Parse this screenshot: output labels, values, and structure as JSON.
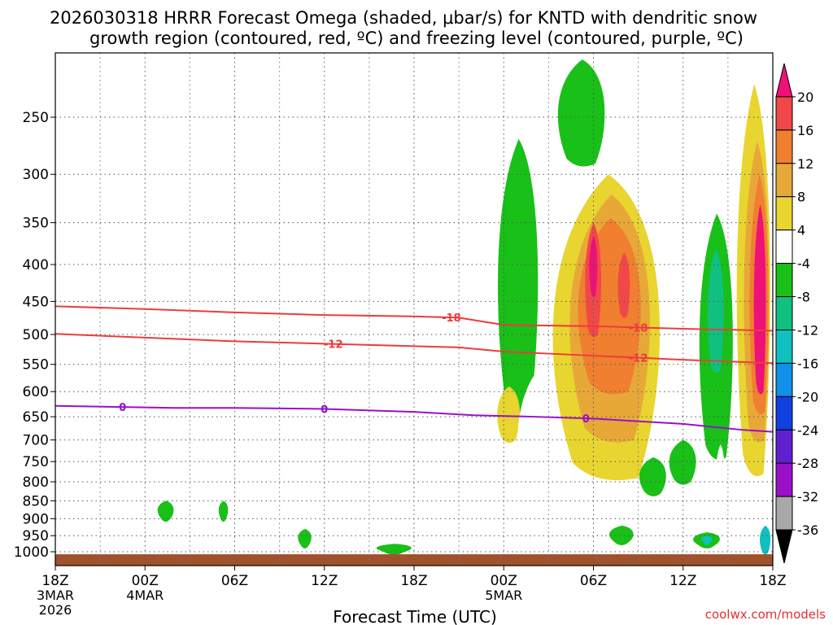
{
  "chart_data": {
    "type": "heatmap",
    "title_line1": "2026030318 HRRR Forecast Omega (shaded, μbar/s) for KNTD with dendritic snow",
    "title_line2": "growth region (contoured, red, ºC) and freezing level (contoured, purple, ºC)",
    "xlabel": "Forecast Time (UTC)",
    "credit": "coolwx.com/models",
    "x_unit": "hours since 2026-03-03 18Z",
    "xlim": [
      0,
      48
    ],
    "y_unit": "pressure (hPa)",
    "ylim": [
      1020,
      200
    ],
    "x_ticks": [
      {
        "hour": 0,
        "label": "18Z",
        "sub1": "3MAR",
        "sub2": "2026"
      },
      {
        "hour": 6,
        "label": "00Z",
        "sub1": "4MAR",
        "sub2": ""
      },
      {
        "hour": 12,
        "label": "06Z",
        "sub1": "",
        "sub2": ""
      },
      {
        "hour": 18,
        "label": "12Z",
        "sub1": "",
        "sub2": ""
      },
      {
        "hour": 24,
        "label": "18Z",
        "sub1": "",
        "sub2": ""
      },
      {
        "hour": 30,
        "label": "00Z",
        "sub1": "5MAR",
        "sub2": ""
      },
      {
        "hour": 36,
        "label": "06Z",
        "sub1": "",
        "sub2": ""
      },
      {
        "hour": 42,
        "label": "12Z",
        "sub1": "",
        "sub2": ""
      },
      {
        "hour": 48,
        "label": "18Z",
        "sub1": "",
        "sub2": ""
      }
    ],
    "y_ticks": [
      250,
      300,
      350,
      400,
      450,
      500,
      550,
      600,
      650,
      700,
      750,
      800,
      850,
      900,
      950,
      1000
    ],
    "colorbar": {
      "labels": [
        "20",
        "16",
        "12",
        "8",
        "4",
        "-4",
        "-8",
        "-12",
        "-16",
        "-20",
        "-24",
        "-28",
        "-32",
        "-36"
      ],
      "bands": [
        {
          "from": 20,
          "to": 24,
          "color": "#ee1177"
        },
        {
          "from": 16,
          "to": 20,
          "color": "#f04848"
        },
        {
          "from": 12,
          "to": 16,
          "color": "#f07f30"
        },
        {
          "from": 8,
          "to": 12,
          "color": "#e8a838"
        },
        {
          "from": 4,
          "to": 8,
          "color": "#e8d530"
        },
        {
          "from": -4,
          "to": 4,
          "color": "#ffffff"
        },
        {
          "from": -8,
          "to": -4,
          "color": "#18c018"
        },
        {
          "from": -12,
          "to": -8,
          "color": "#10c080"
        },
        {
          "from": -16,
          "to": -12,
          "color": "#10c0c0"
        },
        {
          "from": -20,
          "to": -16,
          "color": "#1090e8"
        },
        {
          "from": -24,
          "to": -20,
          "color": "#1040e0"
        },
        {
          "from": -28,
          "to": -24,
          "color": "#6020d0"
        },
        {
          "from": -32,
          "to": -28,
          "color": "#9a10c8"
        },
        {
          "from": -36,
          "to": -32,
          "color": "#a8a8a8"
        },
        {
          "from": -40,
          "to": -36,
          "color": "#000000"
        }
      ]
    },
    "isotherms": [
      {
        "name": "-18 C (dendritic top)",
        "label": "-18",
        "color": "#ee3b3b",
        "points": [
          [
            0,
            457
          ],
          [
            6,
            461
          ],
          [
            12,
            466
          ],
          [
            18,
            470
          ],
          [
            24,
            472
          ],
          [
            27,
            474
          ],
          [
            30,
            485
          ],
          [
            36,
            487
          ],
          [
            42,
            491
          ],
          [
            48,
            494
          ]
        ],
        "label_at_hours": [
          26.5,
          39
        ]
      },
      {
        "name": "-12 C (dendritic bottom)",
        "label": "-12",
        "color": "#ee3b3b",
        "points": [
          [
            0,
            499
          ],
          [
            6,
            505
          ],
          [
            12,
            511
          ],
          [
            18,
            515
          ],
          [
            24,
            519
          ],
          [
            27,
            521
          ],
          [
            30,
            528
          ],
          [
            36,
            535
          ],
          [
            42,
            542
          ],
          [
            48,
            548
          ]
        ],
        "label_at_hours": [
          18.6,
          39
        ]
      },
      {
        "name": "0 C (freezing level)",
        "label": "0",
        "color": "#9a10c8",
        "points": [
          [
            0,
            628
          ],
          [
            4,
            630
          ],
          [
            8,
            632
          ],
          [
            12,
            632
          ],
          [
            18,
            634
          ],
          [
            24,
            640
          ],
          [
            28,
            647
          ],
          [
            32,
            650
          ],
          [
            36,
            654
          ],
          [
            42,
            665
          ],
          [
            46,
            678
          ],
          [
            48,
            682
          ]
        ],
        "label_at_hours": [
          4.5,
          18,
          35.5
        ]
      }
    ],
    "omega_regions": [
      {
        "name": "ascent-core",
        "value_range": "-12 to -8",
        "color": "#18c018",
        "t0": 29.5,
        "t1": 32.5,
        "p_top": 268,
        "p_bot": 645
      },
      {
        "name": "ascent-upper",
        "value_range": "-12 to -4",
        "color": "#18c018",
        "t0": 33.5,
        "t1": 37,
        "p_top": 208,
        "p_bot": 290
      },
      {
        "name": "subsidence-main",
        "value_range": "4 to 20",
        "color": "#e8d530",
        "t0": 33,
        "t1": 41,
        "p_top": 300,
        "p_bot": 790
      },
      {
        "name": "subsidence-late",
        "value_range": "4 to 24",
        "color": "#e8d530",
        "t0": 45.5,
        "t1": 48,
        "p_top": 225,
        "p_bot": 780
      },
      {
        "name": "ascent-late",
        "value_range": "-16 to -4",
        "color": "#18c018",
        "t0": 43,
        "t1": 45.5,
        "p_top": 340,
        "p_bot": 740
      },
      {
        "name": "surface-terrain",
        "value_range": "below ground",
        "color": "#a0522d",
        "t0": 0,
        "t1": 48,
        "p_top": 1008,
        "p_bot": 1020
      }
    ]
  }
}
